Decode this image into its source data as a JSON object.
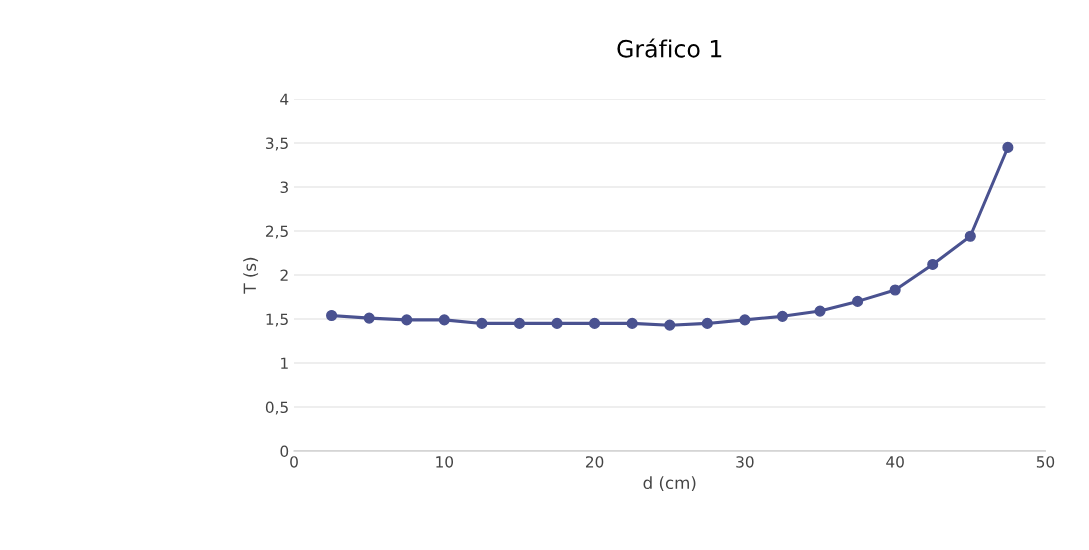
{
  "chart_data": {
    "type": "line",
    "title": "Gráfico 1",
    "xlabel": "d (cm)",
    "ylabel": "T (s)",
    "x": [
      2.5,
      5,
      7.5,
      10,
      12.5,
      15,
      17.5,
      20,
      22.5,
      25,
      27.5,
      30,
      32.5,
      35,
      37.5,
      40,
      42.5,
      45,
      47.5
    ],
    "series": [
      {
        "color": "#4a5290",
        "values": [
          1.54,
          1.51,
          1.49,
          1.49,
          1.45,
          1.45,
          1.45,
          1.45,
          1.45,
          1.43,
          1.45,
          1.49,
          1.53,
          1.59,
          1.7,
          1.83,
          2.12,
          2.44,
          3.45
        ]
      }
    ],
    "xlim": [
      0,
      50
    ],
    "xticks": [
      0,
      10,
      20,
      30,
      40,
      50
    ],
    "ylim": [
      0,
      4
    ],
    "yticks": [
      0,
      {
        "value": 0.5,
        "label": "0,5"
      },
      1,
      {
        "value": 1.5,
        "label": "1,5"
      },
      2,
      {
        "value": 2.5,
        "label": "2,5"
      },
      3,
      {
        "value": 3.5,
        "label": "3,5"
      },
      4
    ],
    "grid": "y",
    "marker": "circle",
    "line_style": "solid"
  }
}
